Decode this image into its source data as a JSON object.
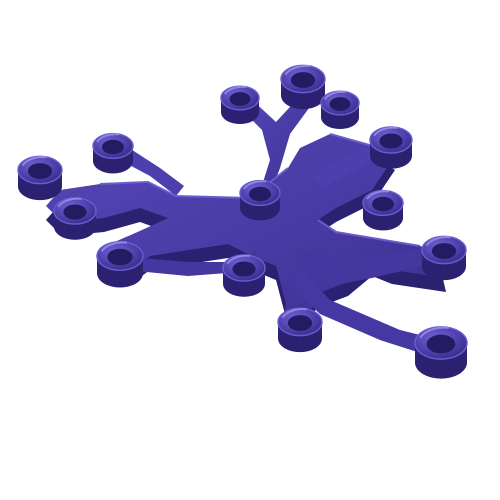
{
  "image": {
    "subject": "snowflake-brick-piece",
    "background_color": "#ffffff",
    "colors": {
      "base": "#4a3ca6",
      "dark": "#2e2477",
      "shadow": "#241c63",
      "light": "#6a5bd0",
      "highlight": "#9e93ec"
    }
  }
}
